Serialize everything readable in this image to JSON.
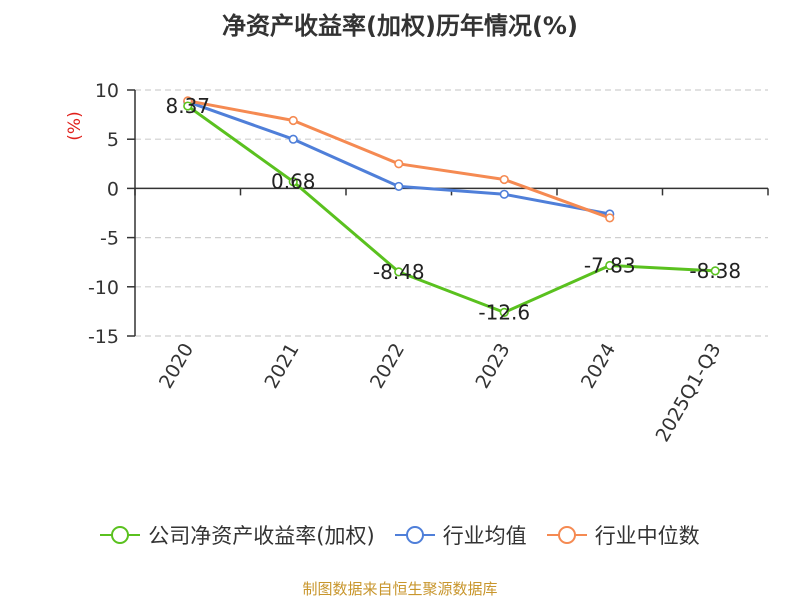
{
  "chart_data": {
    "type": "line",
    "title": "净资产收益率(加权)历年情况(%)",
    "ylabel": "(%)",
    "xlabel": "",
    "ylim": [
      -15,
      10
    ],
    "yticks": [
      10,
      5,
      0,
      -5,
      -10,
      -15
    ],
    "ytick_labels": [
      "10",
      "5",
      "0",
      "-5",
      "-10",
      "-15"
    ],
    "categories": [
      "2020",
      "2021",
      "2022",
      "2023",
      "2024",
      "2025Q1-Q3"
    ],
    "grid": "horizontal dashed",
    "legend_position": "bottom",
    "series": [
      {
        "name": "公司净资产收益率(加权)",
        "color": "#5ac11f",
        "values": [
          8.37,
          0.68,
          -8.48,
          -12.6,
          -7.83,
          -8.38
        ],
        "labels": [
          "8.37",
          "0.68",
          "-8.48",
          "-12.6",
          "-7.83",
          "-8.38"
        ]
      },
      {
        "name": "行业均值",
        "color": "#4f7fd9",
        "values": [
          8.8,
          5.0,
          0.2,
          -0.6,
          -2.6,
          null
        ]
      },
      {
        "name": "行业中位数",
        "color": "#f58a52",
        "values": [
          8.9,
          6.9,
          2.5,
          0.9,
          -3.0,
          null
        ]
      }
    ]
  },
  "source": "制图数据来自恒生聚源数据库"
}
